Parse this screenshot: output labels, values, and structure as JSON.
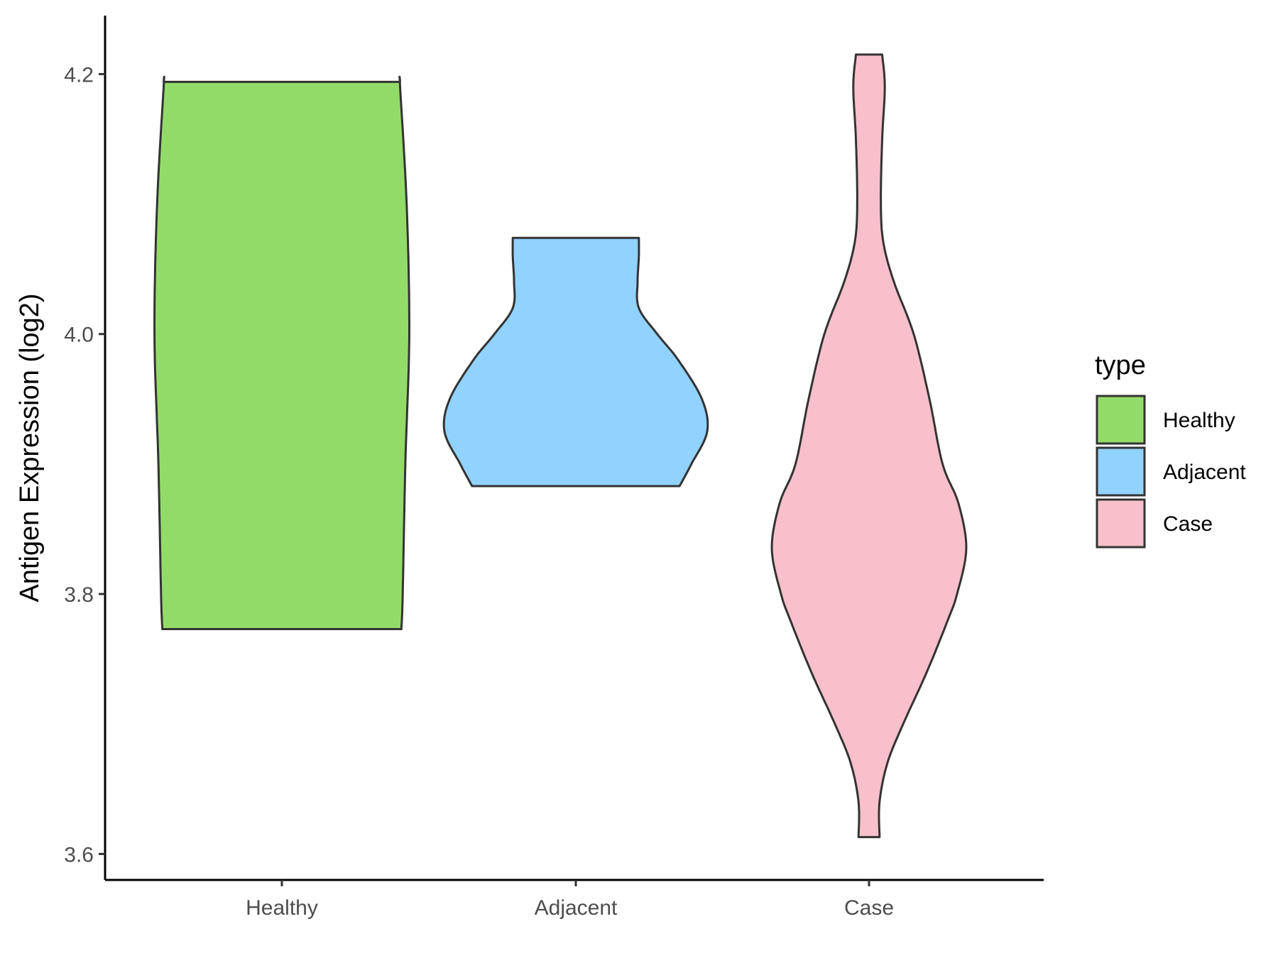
{
  "chart_data": {
    "type": "violin",
    "title": "",
    "xlabel": "",
    "ylabel": "Antigen Expression (log2)",
    "ylim": [
      3.58,
      4.245
    ],
    "yticks": [
      3.6,
      3.8,
      4.0,
      4.2
    ],
    "ytick_labels": [
      "3.6",
      "3.8",
      "4.0",
      "4.2"
    ],
    "categories": [
      "Healthy",
      "Adjacent",
      "Case"
    ],
    "grid": false,
    "legend": {
      "title": "type",
      "position": "right",
      "entries": [
        "Healthy",
        "Adjacent",
        "Case"
      ]
    },
    "colors": {
      "Healthy": "#93DB69",
      "Adjacent": "#92D2FF",
      "Case": "#F7C0CB",
      "outline": "#333333"
    },
    "series": [
      {
        "category": "Healthy",
        "min": 3.773,
        "max": 4.194,
        "density": [
          [
            3.773,
            0.91
          ],
          [
            3.8,
            0.92
          ],
          [
            3.9,
            0.94
          ],
          [
            4.0,
            0.97
          ],
          [
            4.1,
            0.95
          ],
          [
            4.19,
            0.9
          ],
          [
            4.194,
            0.9
          ]
        ]
      },
      {
        "category": "Adjacent",
        "min": 3.883,
        "max": 4.074,
        "density": [
          [
            3.883,
            0.79
          ],
          [
            3.9,
            0.88
          ],
          [
            3.925,
            1.0
          ],
          [
            3.95,
            0.96
          ],
          [
            3.98,
            0.78
          ],
          [
            4.0,
            0.62
          ],
          [
            4.02,
            0.48
          ],
          [
            4.04,
            0.47
          ],
          [
            4.06,
            0.48
          ],
          [
            4.074,
            0.48
          ]
        ]
      },
      {
        "category": "Case",
        "min": 3.613,
        "max": 4.215,
        "density": [
          [
            3.613,
            0.08
          ],
          [
            3.64,
            0.08
          ],
          [
            3.67,
            0.14
          ],
          [
            3.7,
            0.26
          ],
          [
            3.74,
            0.44
          ],
          [
            3.78,
            0.6
          ],
          [
            3.8,
            0.67
          ],
          [
            3.835,
            0.74
          ],
          [
            3.87,
            0.68
          ],
          [
            3.9,
            0.56
          ],
          [
            3.95,
            0.46
          ],
          [
            4.0,
            0.34
          ],
          [
            4.04,
            0.19
          ],
          [
            4.07,
            0.11
          ],
          [
            4.1,
            0.09
          ],
          [
            4.15,
            0.1
          ],
          [
            4.19,
            0.12
          ],
          [
            4.215,
            0.1
          ]
        ]
      }
    ]
  }
}
